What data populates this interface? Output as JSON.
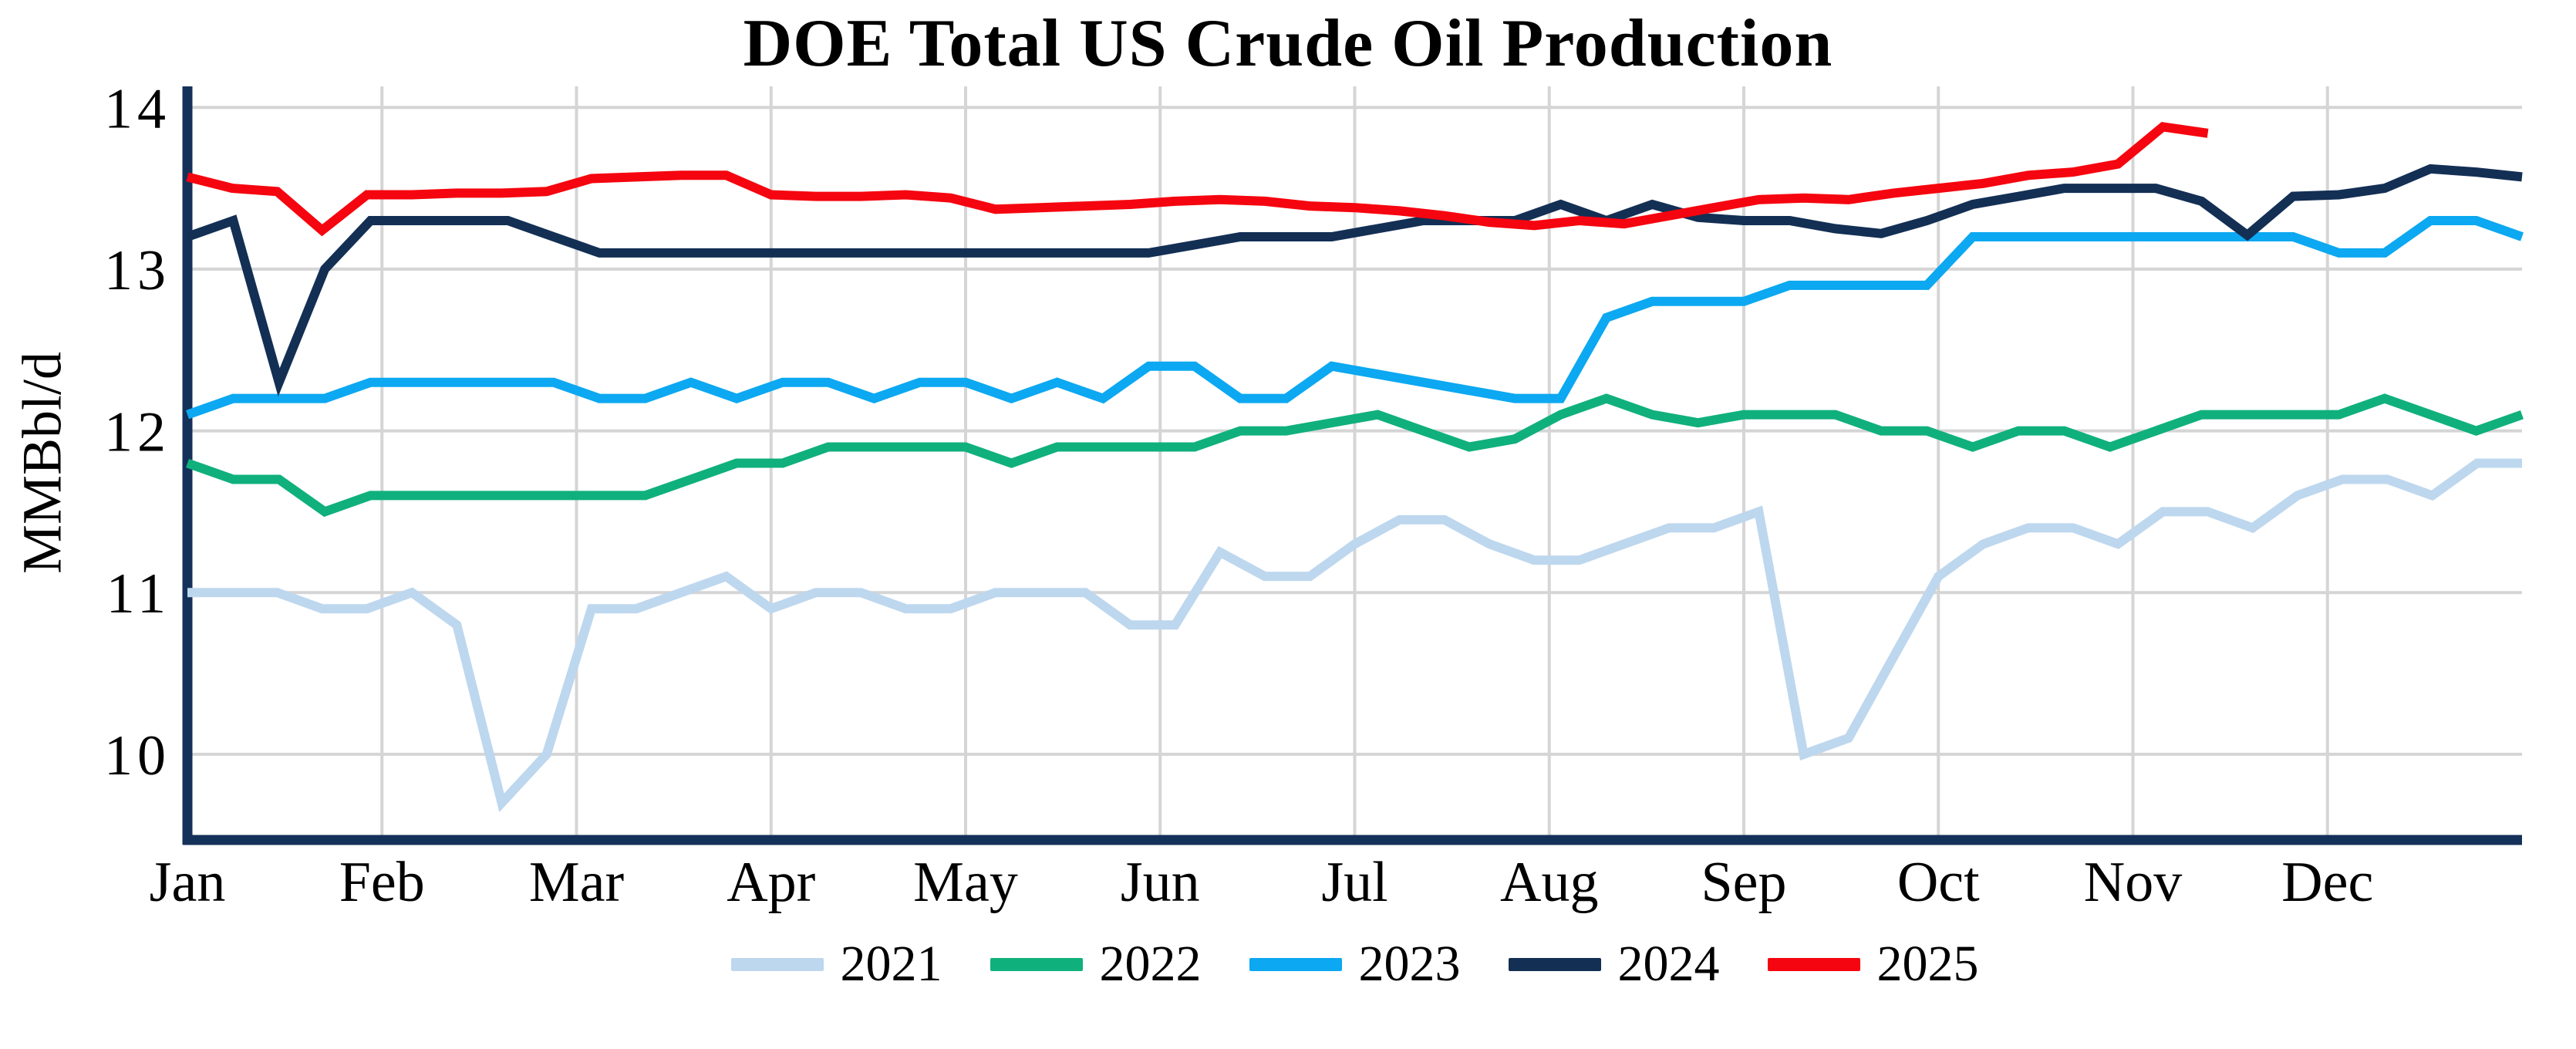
{
  "title": "DOE Total US Crude Oil Production",
  "chart_data": {
    "type": "line",
    "title": "DOE Total US Crude Oil Production",
    "xlabel": "",
    "ylabel": "MMBbl/d",
    "frequency": "weekly",
    "x_tick_labels": [
      "Jan",
      "Feb",
      "Mar",
      "Apr",
      "May",
      "Jun",
      "Jul",
      "Aug",
      "Sep",
      "Oct",
      "Nov",
      "Dec"
    ],
    "y_ticks": [
      10,
      11,
      12,
      13,
      14
    ],
    "ylim": [
      9.47,
      14.13
    ],
    "grid": true,
    "legend_position": "bottom",
    "colors": {
      "background": "#ffffff",
      "text": "#000000",
      "gridline": "#d5d5d5",
      "axis": "#14315a"
    },
    "series": [
      {
        "name": "2021",
        "color": "#bdd7ee",
        "span": 1.0,
        "values": [
          11.0,
          11.0,
          11.0,
          10.9,
          10.9,
          11.0,
          10.8,
          9.7,
          10.0,
          10.9,
          10.9,
          11.0,
          11.1,
          10.9,
          11.0,
          11.0,
          10.9,
          10.9,
          11.0,
          11.0,
          11.0,
          10.8,
          10.8,
          11.25,
          11.1,
          11.1,
          11.3,
          11.45,
          11.45,
          11.3,
          11.2,
          11.2,
          11.3,
          11.4,
          11.4,
          11.5,
          10.0,
          10.1,
          10.6,
          11.1,
          11.3,
          11.4,
          11.4,
          11.3,
          11.5,
          11.5,
          11.4,
          11.6,
          11.7,
          11.7,
          11.6,
          11.8,
          11.8
        ]
      },
      {
        "name": "2022",
        "color": "#10b07c",
        "span": 1.0,
        "values": [
          11.8,
          11.7,
          11.7,
          11.5,
          11.6,
          11.6,
          11.6,
          11.6,
          11.6,
          11.6,
          11.6,
          11.7,
          11.8,
          11.8,
          11.9,
          11.9,
          11.9,
          11.9,
          11.8,
          11.9,
          11.9,
          11.9,
          11.9,
          12.0,
          12.0,
          12.05,
          12.1,
          12.0,
          11.9,
          11.95,
          12.1,
          12.2,
          12.1,
          12.05,
          12.1,
          12.1,
          12.1,
          12.0,
          12.0,
          11.9,
          12.0,
          12.0,
          11.9,
          12.0,
          12.1,
          12.1,
          12.1,
          12.1,
          12.2,
          12.1,
          12.0,
          12.1
        ]
      },
      {
        "name": "2023",
        "color": "#0ca8f1",
        "span": 1.0,
        "values": [
          12.1,
          12.2,
          12.2,
          12.2,
          12.3,
          12.3,
          12.3,
          12.3,
          12.3,
          12.2,
          12.2,
          12.3,
          12.2,
          12.3,
          12.3,
          12.2,
          12.3,
          12.3,
          12.2,
          12.3,
          12.2,
          12.4,
          12.4,
          12.2,
          12.2,
          12.4,
          12.35,
          12.3,
          12.25,
          12.2,
          12.2,
          12.7,
          12.8,
          12.8,
          12.8,
          12.9,
          12.9,
          12.9,
          12.9,
          13.2,
          13.2,
          13.2,
          13.2,
          13.2,
          13.2,
          13.2,
          13.2,
          13.1,
          13.1,
          13.3,
          13.3,
          13.2
        ]
      },
      {
        "name": "2024",
        "color": "#132f54",
        "span": 1.0,
        "values": [
          13.2,
          13.3,
          12.3,
          13.0,
          13.3,
          13.3,
          13.3,
          13.3,
          13.2,
          13.1,
          13.1,
          13.1,
          13.1,
          13.1,
          13.1,
          13.1,
          13.1,
          13.1,
          13.1,
          13.1,
          13.1,
          13.1,
          13.15,
          13.2,
          13.2,
          13.2,
          13.25,
          13.3,
          13.3,
          13.3,
          13.4,
          13.3,
          13.4,
          13.32,
          13.3,
          13.3,
          13.25,
          13.22,
          13.3,
          13.4,
          13.45,
          13.5,
          13.5,
          13.5,
          13.42,
          13.21,
          13.45,
          13.46,
          13.5,
          13.62,
          13.6,
          13.57
        ]
      },
      {
        "name": "2025",
        "color": "#f5050f",
        "span": 0.8654,
        "values": [
          13.57,
          13.5,
          13.48,
          13.24,
          13.46,
          13.46,
          13.47,
          13.47,
          13.48,
          13.56,
          13.57,
          13.58,
          13.58,
          13.46,
          13.45,
          13.45,
          13.46,
          13.44,
          13.37,
          13.38,
          13.39,
          13.4,
          13.42,
          13.43,
          13.42,
          13.39,
          13.38,
          13.36,
          13.33,
          13.29,
          13.27,
          13.3,
          13.28,
          13.33,
          13.38,
          13.43,
          13.44,
          13.43,
          13.47,
          13.5,
          13.53,
          13.58,
          13.6,
          13.65,
          13.88,
          13.84
        ]
      }
    ]
  }
}
